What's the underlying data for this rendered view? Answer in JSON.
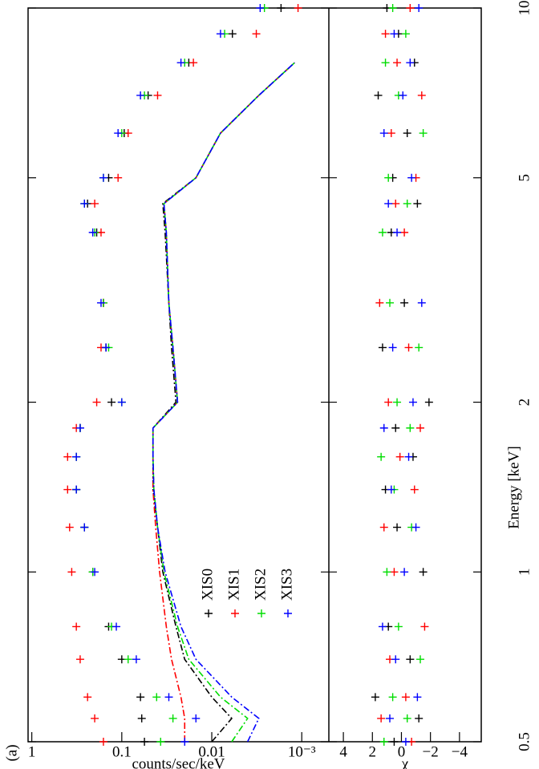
{
  "chart_data": [
    {
      "type": "scatter",
      "panel_label": "(a)",
      "ylabel": "counts/sec/keV",
      "log_x": true,
      "log_y": true,
      "legend": "lower left",
      "x": [
        0.5,
        0.55,
        0.6,
        0.7,
        0.8,
        1.0,
        1.2,
        1.4,
        1.6,
        1.8,
        2.0,
        2.5,
        3,
        4,
        4.5,
        5,
        6,
        7,
        8,
        9,
        10
      ],
      "xlim": [
        0.5,
        10
      ],
      "ylim": [
        0.0005,
        1.1
      ],
      "yticks": [
        1,
        0.1,
        0.01,
        {
          "value": 0.001,
          "label": "10⁻³"
        }
      ],
      "series": [
        {
          "name": "XIS0",
          "color": "#000000",
          "values": [
            0.056,
            0.06,
            0.062,
            0.1,
            0.14,
            0.21,
            0.26,
            0.32,
            0.32,
            0.29,
            0.13,
            0.15,
            0.16,
            0.19,
            0.24,
            0.14,
            0.094,
            0.051,
            0.018,
            0.0059,
            0.0017
          ]
        },
        {
          "name": "XIS1",
          "color": "#ff0000",
          "values": [
            0.16,
            0.2,
            0.24,
            0.29,
            0.32,
            0.36,
            0.38,
            0.4,
            0.4,
            0.32,
            0.19,
            0.17,
            0.16,
            0.17,
            0.2,
            0.11,
            0.085,
            0.04,
            0.016,
            0.0032,
            0.0011
          ]
        },
        {
          "name": "XIS2",
          "color": "#00dd00",
          "values": [
            0.037,
            0.027,
            0.041,
            0.085,
            0.13,
            0.21,
            0.26,
            0.32,
            0.32,
            0.29,
            0.1,
            0.14,
            0.16,
            0.2,
            0.26,
            0.16,
            0.1,
            0.056,
            0.02,
            0.0072,
            0.0026
          ]
        },
        {
          "name": "XIS3",
          "color": "#0000ff",
          "values": [
            0.02,
            0.015,
            0.03,
            0.069,
            0.115,
            0.2,
            0.26,
            0.32,
            0.32,
            0.29,
            0.1,
            0.15,
            0.17,
            0.21,
            0.26,
            0.16,
            0.11,
            0.062,
            0.022,
            0.008,
            0.0029
          ]
        }
      ],
      "components": [
        {
          "color": "#000000",
          "values": [
            0.01,
            0.006,
            0.01,
            0.02,
            0.025,
            0.035,
            0.04,
            0.045,
            0.045,
            0.045,
            0.025,
            0.028,
            0.03,
            0.033,
            0.035,
            0.015,
            0.008,
            0.003,
            0.0012,
            null,
            null
          ]
        },
        {
          "color": "#ff0000",
          "values": [
            0.02,
            0.02,
            0.022,
            0.028,
            0.032,
            0.038,
            0.042,
            0.045,
            0.045,
            0.045,
            0.024,
            0.027,
            0.03,
            0.032,
            0.034,
            0.015,
            0.008,
            0.003,
            0.0012,
            null,
            null
          ]
        },
        {
          "color": "#00dd00",
          "values": [
            0.006,
            0.004,
            0.008,
            0.018,
            0.024,
            0.034,
            0.04,
            0.044,
            0.045,
            0.045,
            0.024,
            0.027,
            0.03,
            0.032,
            0.034,
            0.015,
            0.008,
            0.003,
            0.0012,
            null,
            null
          ]
        },
        {
          "color": "#0000ff",
          "values": [
            0.004,
            0.003,
            0.006,
            0.015,
            0.022,
            0.033,
            0.04,
            0.044,
            0.045,
            0.045,
            0.024,
            0.027,
            0.03,
            0.032,
            0.034,
            0.015,
            0.008,
            0.003,
            0.0012,
            null,
            null
          ]
        }
      ]
    },
    {
      "type": "scatter",
      "xlabel": "Energy [keV]",
      "ylabel": "χ",
      "log_x": true,
      "x": [
        0.5,
        0.55,
        0.6,
        0.7,
        0.8,
        1.0,
        1.2,
        1.4,
        1.6,
        1.8,
        2.0,
        2.5,
        3,
        4,
        4.5,
        5,
        6,
        7,
        8,
        9,
        10
      ],
      "xlim": [
        0.5,
        10
      ],
      "xticks": [
        0.5,
        1,
        2,
        5,
        10
      ],
      "ylim": [
        -5.5,
        5
      ],
      "yticks": [
        4,
        2,
        0,
        {
          "value": -2,
          "label": "−2"
        },
        {
          "value": -4,
          "label": "−4"
        }
      ],
      "series": [
        {
          "color": "#000000",
          "values": [
            0.5,
            -1.2,
            1.8,
            -0.6,
            0.9,
            -1.5,
            0.3,
            1.1,
            -0.8,
            0.4,
            -1.9,
            1.3,
            -0.2,
            0.7,
            -1.1,
            0.6,
            -0.4,
            1.6,
            -0.9,
            0.2,
            1.0
          ]
        },
        {
          "color": "#ff0000",
          "values": [
            -0.7,
            1.4,
            -0.3,
            0.8,
            -1.6,
            0.5,
            1.2,
            -0.9,
            0.1,
            -1.3,
            0.9,
            -0.5,
            1.5,
            -0.2,
            0.4,
            -1.0,
            0.7,
            -1.4,
            0.3,
            1.1,
            -0.6
          ]
        },
        {
          "color": "#00dd00",
          "values": [
            1.2,
            -0.4,
            0.6,
            -1.3,
            0.2,
            1.0,
            -0.7,
            0.5,
            1.4,
            -0.6,
            0.3,
            -1.2,
            0.8,
            1.3,
            -0.4,
            0.9,
            -1.5,
            0.2,
            1.1,
            -0.3,
            0.6
          ]
        },
        {
          "color": "#0000ff",
          "values": [
            -0.3,
            0.8,
            -1.1,
            0.4,
            1.3,
            -0.2,
            -1.0,
            0.7,
            -0.5,
            1.2,
            -0.8,
            0.6,
            -1.4,
            0.3,
            0.9,
            -0.7,
            1.2,
            -0.1,
            -0.6,
            0.5,
            -1.2
          ]
        }
      ]
    }
  ]
}
